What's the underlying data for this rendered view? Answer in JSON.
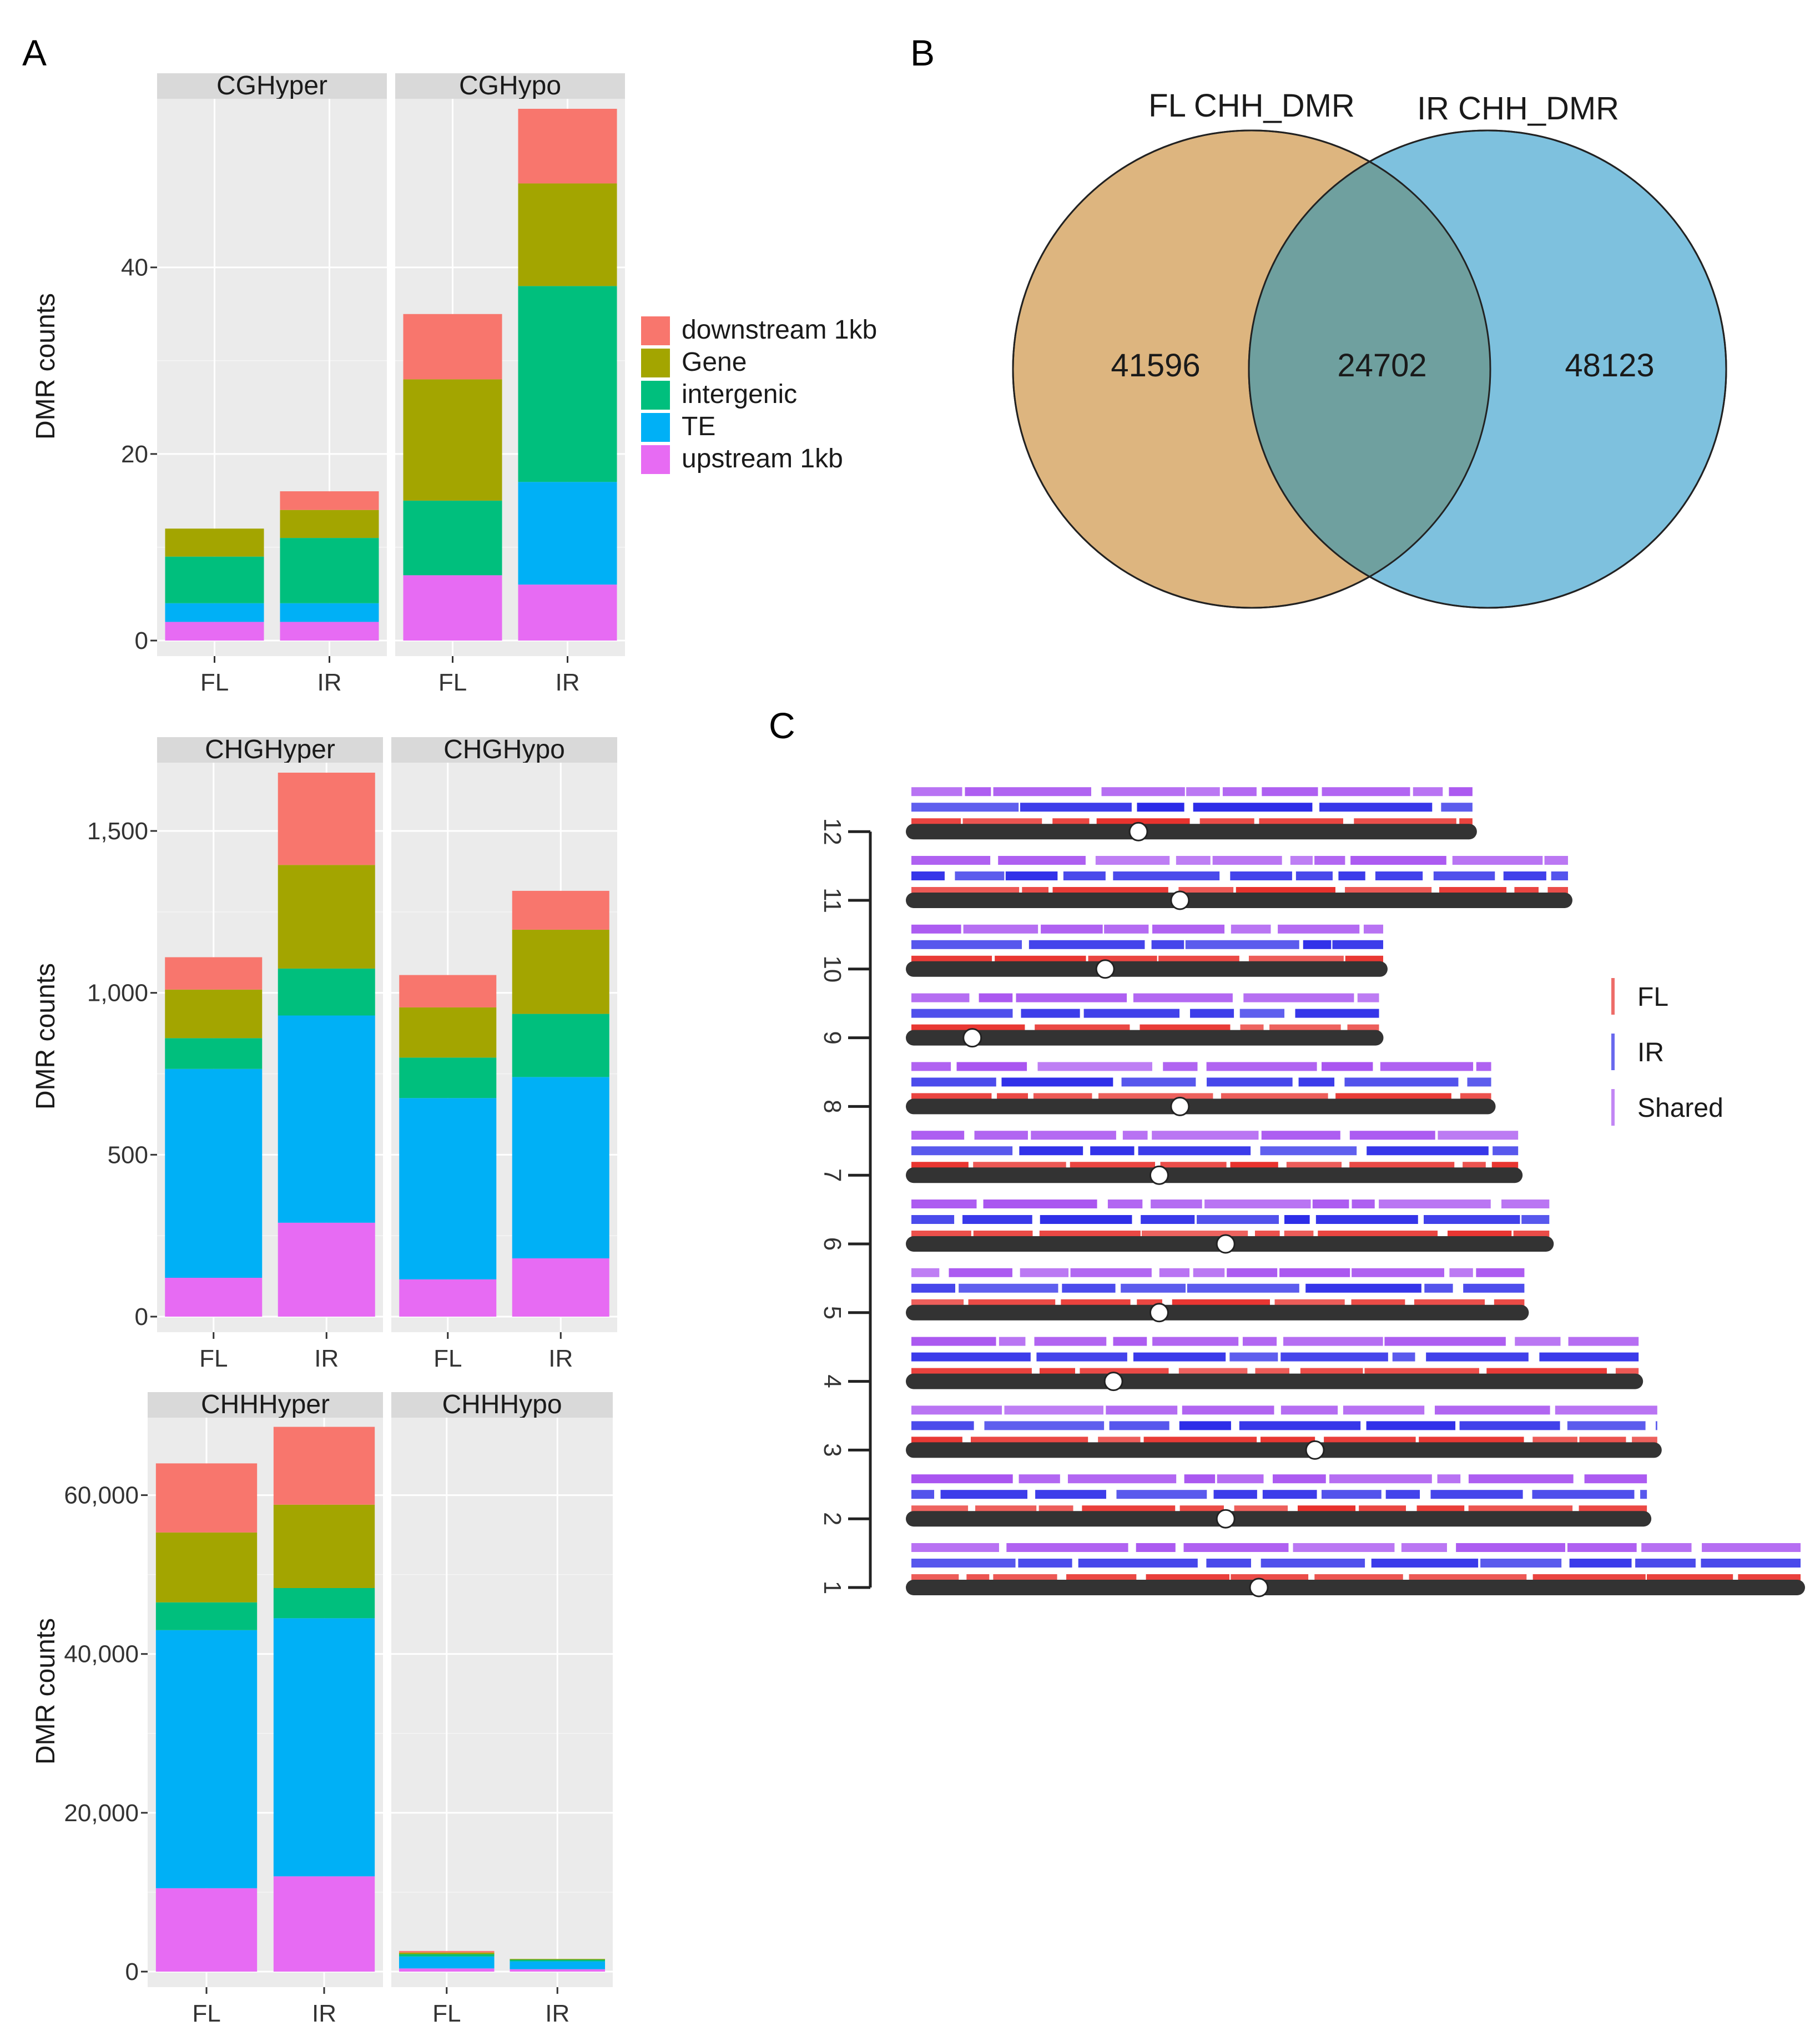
{
  "panel_labels": {
    "a": "A",
    "b": "B",
    "c": "C"
  },
  "colors": {
    "downstream_1kb": "#F8766D",
    "gene": "#A3A500",
    "intergenic": "#00BF7D",
    "te": "#00B0F6",
    "upstream_1kb": "#E76BF3",
    "panel_bg": "#EBEBEB",
    "strip_bg": "#D9D9D9",
    "venn_fl": "#DDB57F",
    "venn_ir": "#7EC1DE",
    "venn_overlap": "#6FA09F",
    "venn_fl_title": "#D9A86A",
    "venn_ir_title": "#6FB7D8",
    "track_fl": "#E8302B",
    "track_ir": "#2B2BE8",
    "track_shared": "#A955F0",
    "chrom": "#333333"
  },
  "chart_data": [
    {
      "type": "bar",
      "stacked": true,
      "title": "CGHyper",
      "ylabel": "DMR counts",
      "categories": [
        "FL",
        "IR"
      ],
      "ylim": [
        0,
        57
      ],
      "yticks": [
        0,
        20,
        40
      ],
      "ytick_labels": [
        "0",
        "20",
        "40"
      ],
      "series": [
        {
          "name": "upstream 1kb",
          "values": [
            2,
            2
          ]
        },
        {
          "name": "TE",
          "values": [
            2,
            2
          ]
        },
        {
          "name": "intergenic",
          "values": [
            5,
            7
          ]
        },
        {
          "name": "Gene",
          "values": [
            3,
            3
          ]
        },
        {
          "name": "downstream 1kb",
          "values": [
            0,
            2
          ]
        }
      ]
    },
    {
      "type": "bar",
      "stacked": true,
      "title": "CGHypo",
      "categories": [
        "FL",
        "IR"
      ],
      "ylim": [
        0,
        57
      ],
      "series": [
        {
          "name": "upstream 1kb",
          "values": [
            7,
            6
          ]
        },
        {
          "name": "TE",
          "values": [
            0,
            11
          ]
        },
        {
          "name": "intergenic",
          "values": [
            8,
            21
          ]
        },
        {
          "name": "Gene",
          "values": [
            13,
            11
          ]
        },
        {
          "name": "downstream 1kb",
          "values": [
            7,
            8
          ]
        }
      ]
    },
    {
      "type": "bar",
      "stacked": true,
      "title": "CHGHyper",
      "ylabel": "DMR counts",
      "categories": [
        "FL",
        "IR"
      ],
      "ylim": [
        0,
        1680
      ],
      "yticks": [
        0,
        500,
        1000,
        1500
      ],
      "ytick_labels": [
        "0",
        "500",
        "1,000",
        "1,500"
      ],
      "series": [
        {
          "name": "upstream 1kb",
          "values": [
            120,
            290
          ]
        },
        {
          "name": "TE",
          "values": [
            645,
            640
          ]
        },
        {
          "name": "intergenic",
          "values": [
            95,
            145
          ]
        },
        {
          "name": "Gene",
          "values": [
            150,
            320
          ]
        },
        {
          "name": "downstream 1kb",
          "values": [
            100,
            285
          ]
        }
      ]
    },
    {
      "type": "bar",
      "stacked": true,
      "title": "CHGHypo",
      "categories": [
        "FL",
        "IR"
      ],
      "ylim": [
        0,
        1680
      ],
      "series": [
        {
          "name": "upstream 1kb",
          "values": [
            115,
            180
          ]
        },
        {
          "name": "TE",
          "values": [
            560,
            560
          ]
        },
        {
          "name": "intergenic",
          "values": [
            125,
            195
          ]
        },
        {
          "name": "Gene",
          "values": [
            155,
            260
          ]
        },
        {
          "name": "downstream 1kb",
          "values": [
            100,
            120
          ]
        }
      ]
    },
    {
      "type": "bar",
      "stacked": true,
      "title": "CHHHyper",
      "ylabel": "DMR counts",
      "categories": [
        "FL",
        "IR"
      ],
      "ylim": [
        0,
        68500
      ],
      "yticks": [
        0,
        20000,
        40000,
        60000
      ],
      "ytick_labels": [
        "0",
        "20,000",
        "40,000",
        "60,000"
      ],
      "series": [
        {
          "name": "upstream 1kb",
          "values": [
            10500,
            12000
          ]
        },
        {
          "name": "TE",
          "values": [
            32500,
            32500
          ]
        },
        {
          "name": "intergenic",
          "values": [
            3500,
            3800
          ]
        },
        {
          "name": "Gene",
          "values": [
            8800,
            10500
          ]
        },
        {
          "name": "downstream 1kb",
          "values": [
            8700,
            9800
          ]
        }
      ]
    },
    {
      "type": "bar",
      "stacked": true,
      "title": "CHHHypo",
      "categories": [
        "FL",
        "IR"
      ],
      "ylim": [
        0,
        68500
      ],
      "series": [
        {
          "name": "upstream 1kb",
          "values": [
            400,
            300
          ]
        },
        {
          "name": "TE",
          "values": [
            1500,
            1000
          ]
        },
        {
          "name": "intergenic",
          "values": [
            300,
            200
          ]
        },
        {
          "name": "Gene",
          "values": [
            200,
            100
          ]
        },
        {
          "name": "downstream 1kb",
          "values": [
            200,
            0
          ]
        }
      ]
    }
  ],
  "legend": {
    "items": [
      {
        "label": "downstream 1kb",
        "key": "downstream_1kb"
      },
      {
        "label": "Gene",
        "key": "gene"
      },
      {
        "label": "intergenic",
        "key": "intergenic"
      },
      {
        "label": "TE",
        "key": "te"
      },
      {
        "label": "upstream 1kb",
        "key": "upstream_1kb"
      }
    ]
  },
  "venn": {
    "type": "venn",
    "set_a": "FL CHH_DMR",
    "set_b": "IR CHH_DMR",
    "only_a": "41596",
    "overlap": "24702",
    "only_b": "48123"
  },
  "karyotype": {
    "type": "karyotype",
    "chromosomes": [
      "1",
      "2",
      "3",
      "4",
      "5",
      "6",
      "7",
      "8",
      "9",
      "10",
      "11",
      "12"
    ],
    "lengths_mb": [
      43.3,
      35.9,
      36.4,
      35.5,
      30.0,
      31.2,
      29.7,
      28.4,
      23.0,
      23.2,
      32.1,
      27.5
    ],
    "centromere_mb": [
      17.0,
      15.4,
      19.7,
      10.0,
      12.2,
      15.4,
      12.2,
      13.2,
      3.2,
      9.6,
      13.2,
      11.2
    ],
    "legend": [
      "FL",
      "IR",
      "Shared"
    ]
  }
}
